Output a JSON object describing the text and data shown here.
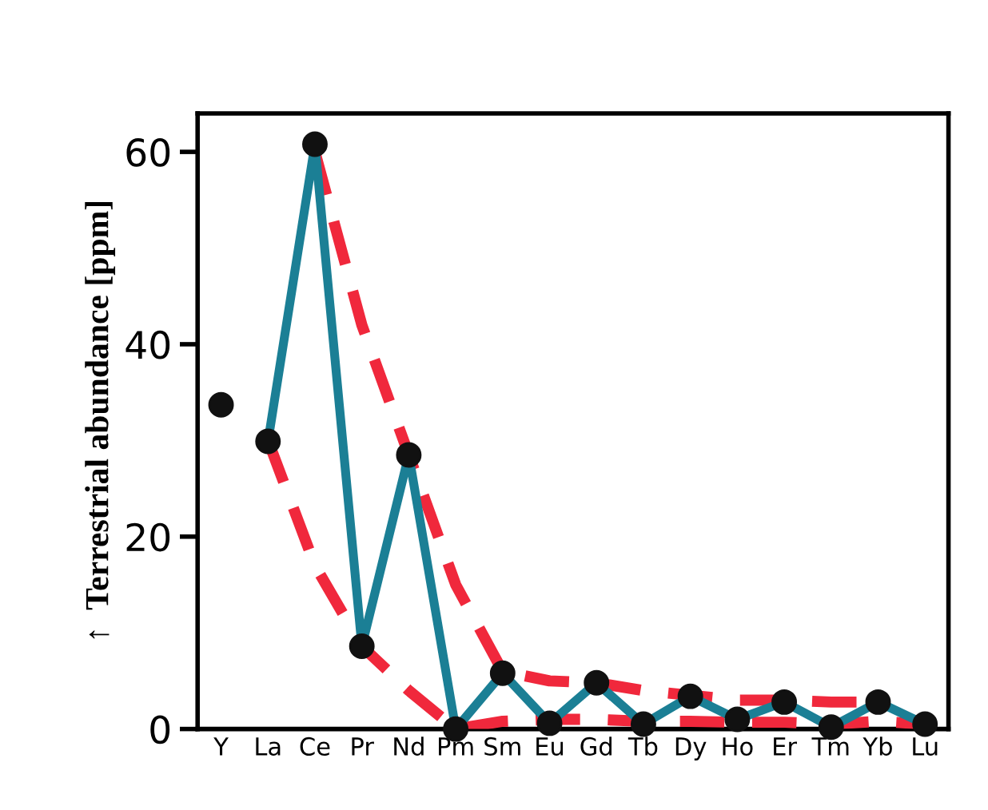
{
  "chart_data": {
    "type": "line",
    "ylabel": "↑  Terrestrial abundance [ppm]",
    "categories": [
      "Y",
      "La",
      "Ce",
      "Pr",
      "Nd",
      "Pm",
      "Sm",
      "Eu",
      "Gd",
      "Tb",
      "Dy",
      "Ho",
      "Er",
      "Tm",
      "Yb",
      "Lu"
    ],
    "ylim": [
      0,
      64
    ],
    "yticks": [
      0,
      20,
      40,
      60
    ],
    "grid": false,
    "legend": false,
    "series": [
      {
        "line_style": "dashed",
        "color": "#f0283c",
        "values": [
          null,
          null,
          60,
          42,
          28.5,
          15,
          6,
          5,
          4.8,
          4,
          3.5,
          3,
          3,
          2.8,
          2.8,
          null
        ]
      },
      {
        "line_style": "dashed",
        "color": "#f0283c",
        "values": [
          null,
          30,
          17,
          8.6,
          4,
          0,
          0.8,
          1,
          1,
          0.8,
          0.8,
          0.7,
          0.7,
          0.5,
          0.8,
          0.5
        ]
      },
      {
        "line_style": "solid",
        "color": "#1b7f95",
        "values": [
          null,
          29.9,
          60.8,
          8.6,
          28.5,
          0,
          5.8,
          0.6,
          4.8,
          0.5,
          3.4,
          1.0,
          2.8,
          0.2,
          2.8,
          0.5
        ]
      },
      {
        "type": "scatter",
        "marker": "circle",
        "color": "#111111",
        "values": [
          33.7,
          29.9,
          60.8,
          8.6,
          28.5,
          0,
          5.8,
          0.6,
          4.8,
          0.5,
          3.4,
          1.0,
          2.8,
          0.2,
          2.8,
          0.5
        ]
      }
    ]
  }
}
